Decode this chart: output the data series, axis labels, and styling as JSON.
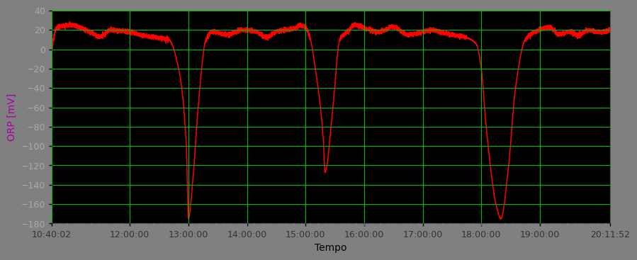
{
  "title": "",
  "xlabel": "Tempo",
  "ylabel": "ORP [mV]",
  "background_color": "#000000",
  "plot_bg_color": "#000000",
  "figure_bg_color": "#808080",
  "line_color": "#FF0000",
  "line_width": 1.1,
  "grid_color": "#00BB00",
  "grid_alpha": 1.0,
  "ylim": [
    -180,
    40
  ],
  "yticks": [
    -180,
    -160,
    -140,
    -120,
    -100,
    -80,
    -60,
    -40,
    -20,
    0,
    20,
    40
  ],
  "xtick_labels": [
    "10:40:02",
    "12:00:00",
    "13:00:00",
    "14:00:00",
    "15:00:00",
    "16:00:00",
    "17:00:00",
    "18:00:00",
    "19:00:00",
    "20:11:52"
  ],
  "font_size": 9,
  "label_font_size": 10,
  "ylabel_color": "#AA00AA",
  "xlabel_color": "#000000",
  "tick_label_color_y": "#AAAAAA",
  "tick_label_color_x": "#333333"
}
